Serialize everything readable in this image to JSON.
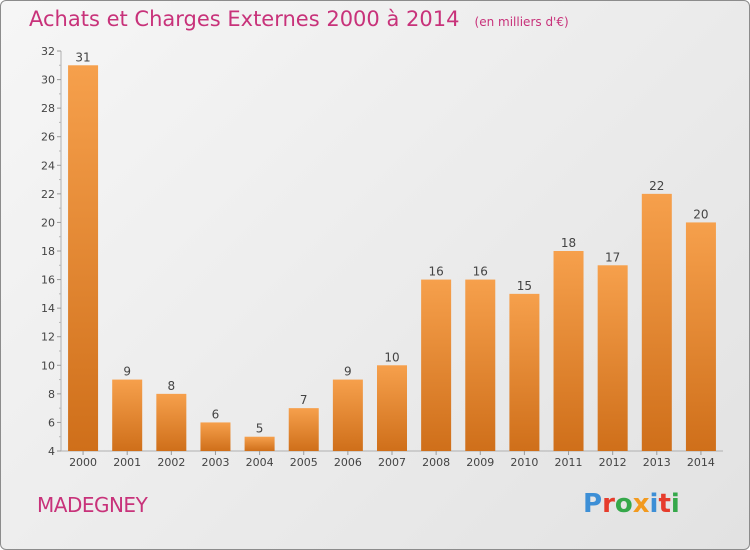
{
  "header": {
    "title": "Achats et Charges Externes 2000 à 2014",
    "subtitle": "(en milliers d'€)"
  },
  "footer": {
    "commune": "MADEGNEY",
    "brand": "Proxiti",
    "brand_colors": [
      "#3d8fd6",
      "#e63c2c",
      "#35a84a",
      "#f29a1f",
      "#3d8fd6",
      "#e63c2c",
      "#35a84a"
    ]
  },
  "colors": {
    "bar_light": "#f6a04c",
    "bar_dark": "#cf6f1a",
    "text": "#c8327a"
  },
  "chart_data": {
    "type": "bar",
    "title": "Achats et Charges Externes 2000 à 2014",
    "subtitle": "(en milliers d'€)",
    "categories": [
      "2000",
      "2001",
      "2002",
      "2003",
      "2004",
      "2005",
      "2006",
      "2007",
      "2008",
      "2009",
      "2010",
      "2011",
      "2012",
      "2013",
      "2014"
    ],
    "values": [
      31,
      9,
      8,
      6,
      5,
      7,
      9,
      10,
      16,
      16,
      15,
      18,
      17,
      22,
      20
    ],
    "ylim": [
      4,
      32
    ],
    "yticks": [
      4,
      6,
      8,
      10,
      12,
      14,
      16,
      18,
      20,
      22,
      24,
      26,
      28,
      30,
      32
    ],
    "grid": false,
    "data_labels": true
  }
}
